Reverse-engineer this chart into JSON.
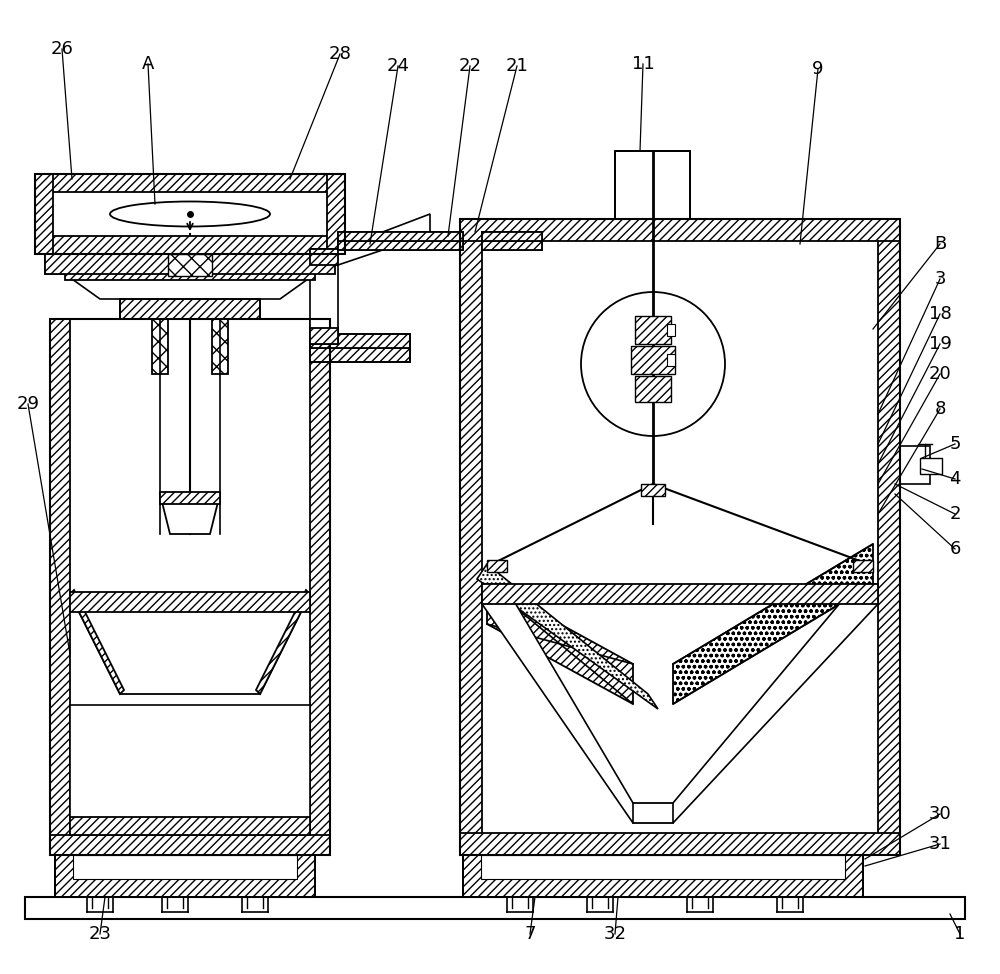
{
  "bg_color": "#ffffff",
  "line_color": "#000000",
  "fig_width": 10.0,
  "fig_height": 9.74,
  "wall_thickness": 18,
  "hatch": "////"
}
